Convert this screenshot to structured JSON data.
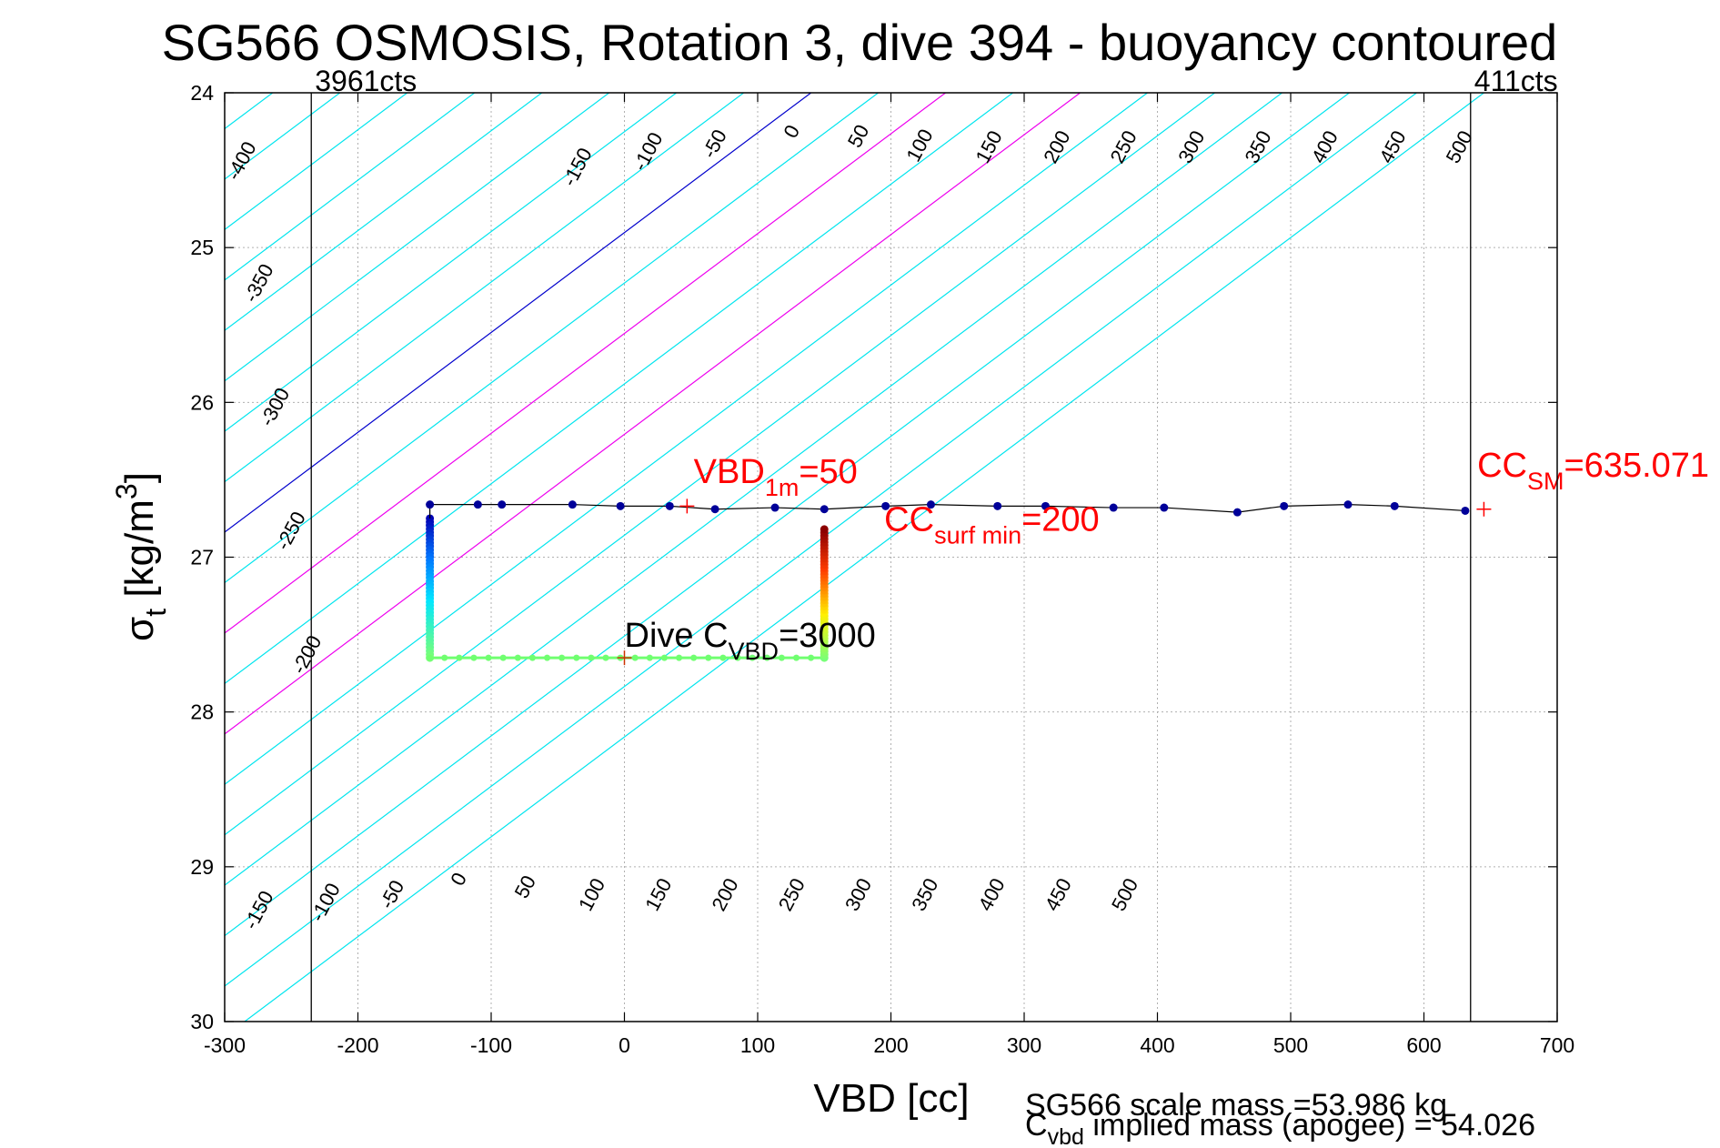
{
  "chart_data": {
    "type": "scatter",
    "title": "SG566 OSMOSIS, Rotation 3, dive 394 - buoyancy contoured",
    "xlabel": "VBD [cc]",
    "ylabel_main": "σ",
    "ylabel_sub": "t",
    "ylabel_rest": " [kg/m",
    "ylabel_sup": "3",
    "ylabel_end": "]",
    "xlim": [
      -300,
      700
    ],
    "ylim": [
      24,
      30
    ],
    "y_reversed": true,
    "grid": true,
    "x_ticks": [
      -300,
      -200,
      -100,
      0,
      100,
      200,
      300,
      400,
      500,
      600,
      700
    ],
    "y_ticks": [
      24,
      25,
      26,
      27,
      28,
      29,
      30
    ],
    "contours": {
      "levels": [
        -400,
        -350,
        -300,
        -250,
        -200,
        -150,
        -100,
        -50,
        0,
        50,
        100,
        150,
        200,
        250,
        300,
        350,
        400,
        450,
        500
      ],
      "highlight_colors": {
        "0": "#0000cc",
        "100": "#ee00ee",
        "200": "#ee00ee"
      },
      "default_color": "#00e5ee",
      "top_labels": [
        {
          "text": "-400",
          "x": -283,
          "y": 24.46
        },
        {
          "text": "-350",
          "x": -270,
          "y": 25.25
        },
        {
          "text": "-300",
          "x": -258,
          "y": 26.05
        },
        {
          "text": "-250",
          "x": -246,
          "y": 26.85
        },
        {
          "text": "-200",
          "x": -234,
          "y": 27.65
        },
        {
          "text": "-150",
          "x": -31,
          "y": 24.5
        },
        {
          "text": "-100",
          "x": 22,
          "y": 24.4
        },
        {
          "text": "-50",
          "x": 72,
          "y": 24.35
        },
        {
          "text": "0",
          "x": 130,
          "y": 24.27
        },
        {
          "text": "50",
          "x": 180,
          "y": 24.3
        },
        {
          "text": "100",
          "x": 226,
          "y": 24.36
        },
        {
          "text": "150",
          "x": 278,
          "y": 24.37
        },
        {
          "text": "200",
          "x": 329,
          "y": 24.37
        },
        {
          "text": "250",
          "x": 379,
          "y": 24.37
        },
        {
          "text": "300",
          "x": 430,
          "y": 24.37
        },
        {
          "text": "350",
          "x": 480,
          "y": 24.37
        },
        {
          "text": "400",
          "x": 530,
          "y": 24.37
        },
        {
          "text": "450",
          "x": 581,
          "y": 24.37
        },
        {
          "text": "500",
          "x": 631,
          "y": 24.37
        }
      ],
      "bottom_labels": [
        {
          "text": "-150",
          "x": -270,
          "y": 29.3
        },
        {
          "text": "-100",
          "x": -220,
          "y": 29.25
        },
        {
          "text": "-50",
          "x": -170,
          "y": 29.2
        },
        {
          "text": "0",
          "x": -120,
          "y": 29.1
        },
        {
          "text": "50",
          "x": -70,
          "y": 29.15
        },
        {
          "text": "100",
          "x": -20,
          "y": 29.2
        },
        {
          "text": "150",
          "x": 30,
          "y": 29.2
        },
        {
          "text": "200",
          "x": 80,
          "y": 29.2
        },
        {
          "text": "250",
          "x": 130,
          "y": 29.2
        },
        {
          "text": "300",
          "x": 180,
          "y": 29.2
        },
        {
          "text": "350",
          "x": 230,
          "y": 29.2
        },
        {
          "text": "400",
          "x": 280,
          "y": 29.2
        },
        {
          "text": "450",
          "x": 330,
          "y": 29.2
        },
        {
          "text": "500",
          "x": 380,
          "y": 29.2
        }
      ]
    },
    "vertical_lines": [
      {
        "x": -235,
        "label": "3961cts"
      },
      {
        "x": 635,
        "label": "411cts"
      }
    ],
    "surface_series": {
      "x": [
        -146,
        -110,
        -92,
        -39,
        -3,
        34,
        68,
        113,
        150,
        196,
        230,
        280,
        316,
        367,
        405,
        460,
        495,
        543,
        578,
        631
      ],
      "y": [
        26.66,
        26.66,
        26.66,
        26.66,
        26.67,
        26.67,
        26.69,
        26.68,
        26.69,
        26.67,
        26.66,
        26.67,
        26.67,
        26.68,
        26.68,
        26.71,
        26.67,
        26.66,
        26.67,
        26.7
      ]
    },
    "dive_path": {
      "descent_x": -146,
      "descent_y": [
        26.75,
        27.65
      ],
      "bottom_y": 27.65,
      "bottom_x": [
        -146,
        150
      ],
      "ascent_x": 150,
      "ascent_y": [
        27.65,
        26.82
      ],
      "bottom_points_x": [
        -146,
        -135,
        -124,
        -113,
        -102,
        -91,
        -80,
        -69,
        -58,
        -47,
        -36,
        -25,
        -14,
        -3,
        8,
        19,
        30,
        41,
        52,
        63,
        74,
        85,
        96,
        107,
        118,
        129,
        140,
        150
      ]
    },
    "markers": [
      {
        "x": 47,
        "y": 26.67,
        "color": "#ff0000"
      },
      {
        "x": 0,
        "y": 27.65,
        "color": "#cc3300"
      },
      {
        "x": 645,
        "y": 26.69,
        "color": "#ff0000"
      }
    ],
    "annotations": [
      {
        "name": "vbd-1m-annotation",
        "main": "VBD",
        "sub": "1m",
        "rest": "=50",
        "color": "#ff0000",
        "x": 52,
        "y": 26.52
      },
      {
        "name": "cc-surf-min-annotation",
        "main": "CC",
        "sub": "surf min",
        "rest": "=200",
        "color": "#ff0000",
        "x": 195,
        "y": 26.83
      },
      {
        "name": "cc-sm-annotation",
        "main": "CC",
        "sub": "SM",
        "rest": "=635.071",
        "color": "#ff0000",
        "x": 640,
        "y": 26.48
      },
      {
        "name": "dive-cvbd-annotation",
        "main": "Dive C",
        "sub": "VBD",
        "rest": "=3000",
        "color": "#000000",
        "x": 0,
        "y": 27.58
      }
    ],
    "footer": {
      "line1": "SG566 scale mass =53.986 kg",
      "line2_main": "C",
      "line2_sub": "vbd",
      "line2_rest": " implied mass (apogee) = 54.026"
    }
  }
}
